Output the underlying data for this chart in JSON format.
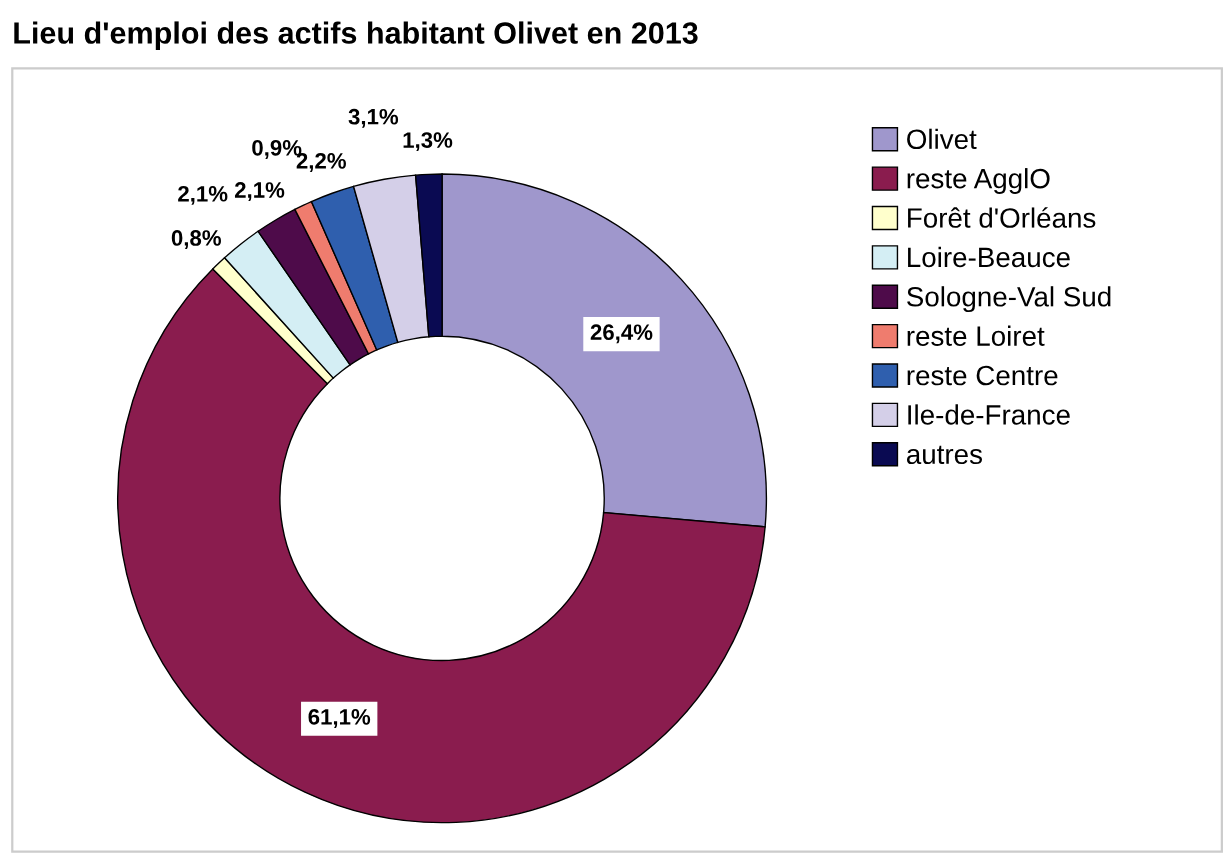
{
  "chart_data": {
    "type": "donut",
    "title": "Lieu d'emploi des actifs habitant Olivet en 2013",
    "categories": [
      "Olivet",
      "reste AgglO",
      "Forêt d'Orléans",
      "Loire-Beauce",
      "Sologne-Val Sud",
      "reste Loiret",
      "reste Centre",
      "Ile-de-France",
      "autres"
    ],
    "values": [
      26.4,
      61.1,
      0.8,
      2.1,
      2.1,
      0.9,
      2.2,
      3.1,
      1.3
    ],
    "value_labels": [
      "26,4%",
      "61,1%",
      "0,8%",
      "2,1%",
      "2,1%",
      "0,9%",
      "2,2%",
      "3,1%",
      "1,3%"
    ],
    "colors": [
      "#9f97cc",
      "#8a1c4e",
      "#ffffcc",
      "#d4eef4",
      "#4e0b4a",
      "#ef7c6e",
      "#2f5fae",
      "#d4cfe8",
      "#0a0a52"
    ],
    "legend": "right"
  }
}
